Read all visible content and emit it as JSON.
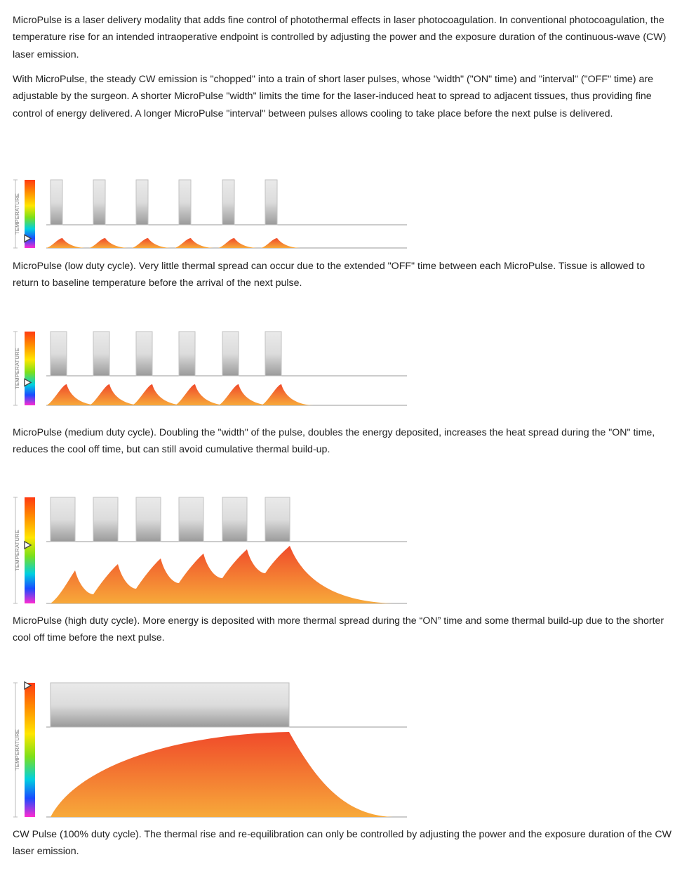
{
  "intro": {
    "p1": "MicroPulse is a laser delivery modality that adds fine control of photothermal effects in laser photocoagulation. In conventional photocoagulation, the temperature rise for an intended intraoperative endpoint is controlled by adjusting the power and the exposure duration of the continuous-wave (CW) laser emission.",
    "p2": "With MicroPulse, the steady CW emission is \"chopped\" into a train of short laser pulses, whose \"width\" (\"ON\" time) and \"interval\" (\"OFF\" time) are adjustable by the surgeon. A shorter MicroPulse \"width\" limits the time for the laser-induced heat to spread to adjacent tissues, thus providing fine control of energy delivered. A longer MicroPulse \"interval\" between pulses allows cooling to take place before the next pulse is delivered."
  },
  "scale_label": "TEMPERATURE",
  "colors": {
    "scale": [
      "#ff3b12",
      "#ff8c00",
      "#ffe600",
      "#7de01a",
      "#00d0e0",
      "#1a4cff",
      "#ff2bd0"
    ],
    "heat_top": "#f04a2a",
    "heat_bottom": "#f7a93a",
    "pulse_top": "#eaeaea",
    "pulse_bottom": "#9a9a9a"
  },
  "figures": [
    {
      "duty": "low",
      "pulses": 6,
      "temperature_level": 0.14,
      "caption": "MicroPulse (low duty cycle). Very little thermal spread can occur due to the extended \"OFF\" time between each MicroPulse. Tissue is allowed to return to baseline temperature before the arrival of the next pulse."
    },
    {
      "duty": "medium",
      "pulses": 6,
      "temperature_level": 0.31,
      "caption": "MicroPulse (medium duty cycle). Doubling the \"width\" of the pulse, doubles the energy deposited, increases the heat spread during the \"ON\" time, reduces the cool off time, but can still avoid cumulative thermal build-up."
    },
    {
      "duty": "high",
      "pulses": 6,
      "temperature_level": 0.55,
      "caption": "MicroPulse (high duty cycle). More energy is deposited with more thermal spread during the “ON” time and some thermal build-up due to the shorter cool off time before the next pulse."
    },
    {
      "duty": "cw",
      "pulses": 1,
      "temperature_level": 0.98,
      "caption": "CW Pulse (100% duty cycle). The thermal rise and re-equilibration can only be controlled by adjusting the power and the exposure duration of the CW laser emission."
    }
  ]
}
